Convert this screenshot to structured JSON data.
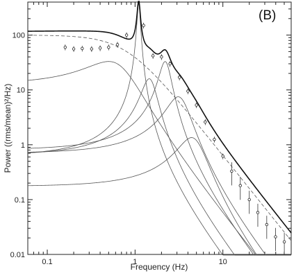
{
  "chart_data": {
    "type": "line",
    "panel_label": "(B)",
    "xlabel": "Frequency (Hz)",
    "ylabel": "Power ((rms/mean)²/Hz)",
    "xscale": "log",
    "yscale": "log",
    "xlim": [
      0.06,
      60
    ],
    "ylim": [
      0.01,
      400
    ],
    "x_ticks": [
      {
        "value": 0.1,
        "label": "0.1"
      },
      {
        "value": 1,
        "label": "1"
      },
      {
        "value": 10,
        "label": "10"
      }
    ],
    "y_ticks": [
      {
        "value": 100,
        "label": "100"
      },
      {
        "value": 10,
        "label": "10"
      },
      {
        "value": 1,
        "label": "1"
      },
      {
        "value": 0.1,
        "label": "0.1"
      },
      {
        "value": 0.01,
        "label": "0.01"
      }
    ],
    "grid": false,
    "legend": "none",
    "components": [
      {
        "kind": "lorentzian",
        "style": "dashed",
        "f0": 0.0,
        "width": 1.6,
        "norm": 100
      },
      {
        "kind": "lorentzian",
        "style": "solid",
        "f0": 0.5,
        "width": 0.8,
        "norm": 33
      },
      {
        "kind": "lorentzian",
        "style": "solid",
        "f0": 1.1,
        "width": 0.09,
        "norm": 380
      },
      {
        "kind": "lorentzian",
        "style": "solid",
        "f0": 1.45,
        "width": 0.6,
        "norm": 16
      },
      {
        "kind": "lorentzian",
        "style": "solid",
        "f0": 2.2,
        "width": 0.7,
        "norm": 33
      },
      {
        "kind": "lorentzian",
        "style": "solid",
        "f0": 3.1,
        "width": 2.0,
        "norm": 7.5
      },
      {
        "kind": "lorentzian",
        "style": "solid",
        "f0": 4.4,
        "width": 3.4,
        "norm": 1.35
      }
    ],
    "data_points": [
      [
        0.16,
        60
      ],
      [
        0.2,
        56
      ],
      [
        0.25,
        57
      ],
      [
        0.32,
        56
      ],
      [
        0.4,
        58
      ],
      [
        0.5,
        60
      ],
      [
        0.63,
        67
      ],
      [
        0.8,
        100
      ],
      [
        1.25,
        150
      ],
      [
        1.6,
        42
      ],
      [
        2.0,
        40
      ],
      [
        2.5,
        30
      ],
      [
        3.2,
        17
      ],
      [
        4.0,
        9.5
      ],
      [
        5.0,
        5.3
      ],
      [
        6.3,
        2.6
      ],
      [
        8.0,
        1.25
      ],
      [
        10.0,
        0.62
      ],
      [
        12.6,
        0.33
      ],
      [
        15.8,
        0.18
      ],
      [
        20.0,
        0.1
      ],
      [
        25.0,
        0.058
      ],
      [
        31.6,
        0.035
      ],
      [
        39.8,
        0.021
      ],
      [
        50.1,
        0.017
      ]
    ]
  }
}
